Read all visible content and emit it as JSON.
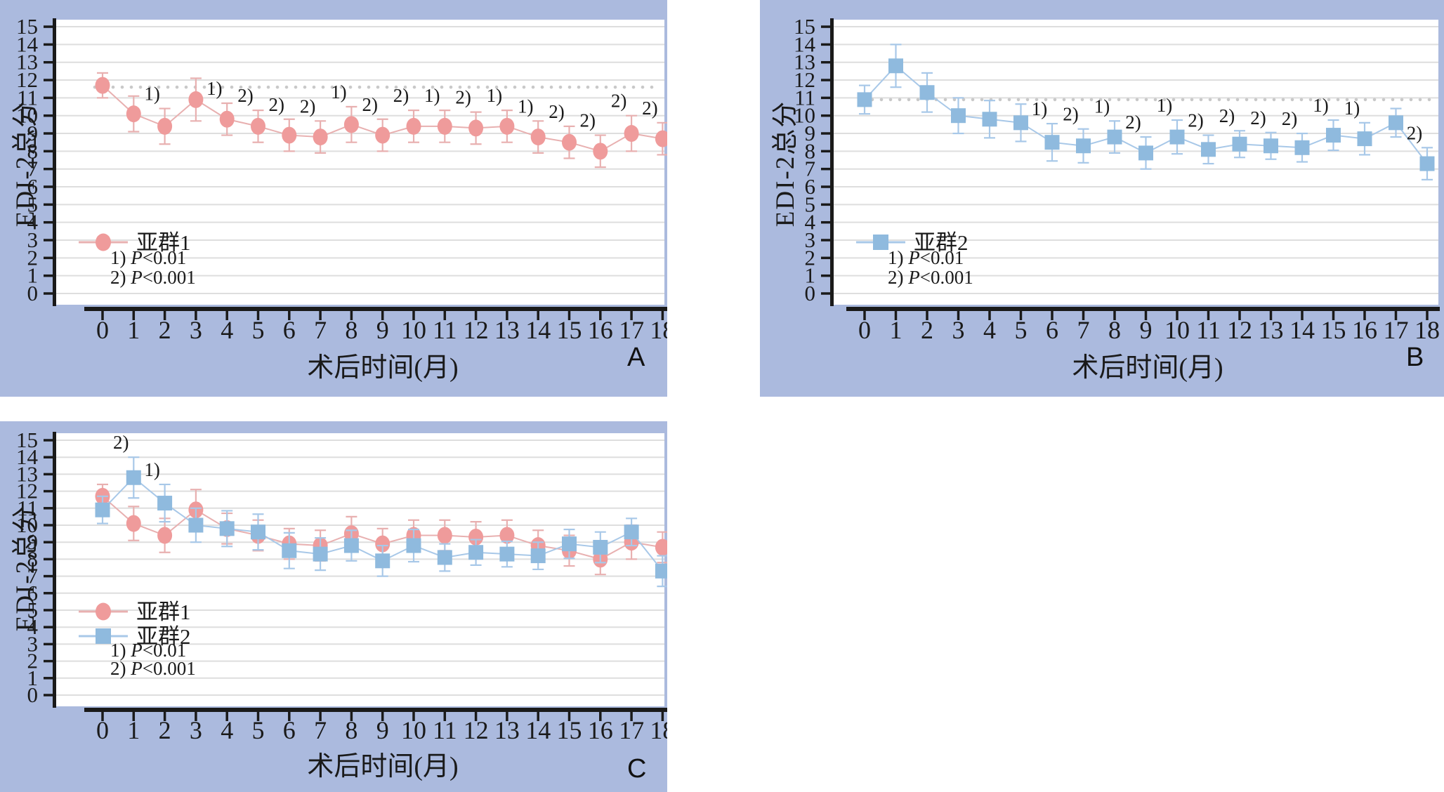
{
  "figure": {
    "panel_background": "#abbade",
    "plot_background": "#ffffff",
    "grid_color": "#dedede",
    "axis_color": "#1a1a1a",
    "reference_dot_color": "#c9c9c9"
  },
  "chart_data": [
    {
      "type": "line",
      "panel_label": "A",
      "xlabel": "术后时间(月)",
      "ylabel": "EDI-2总分",
      "x": [
        0,
        1,
        2,
        3,
        4,
        5,
        6,
        7,
        8,
        9,
        10,
        11,
        12,
        13,
        14,
        15,
        16,
        17,
        18
      ],
      "xlim": [
        0,
        18
      ],
      "ylim": [
        0,
        15
      ],
      "grid": true,
      "legend_position": "inside-lower-left",
      "reference_line_y": 11.6,
      "legend_notes": [
        "1) P<0.01",
        "2) P<0.001"
      ],
      "series": [
        {
          "name": "亚群1",
          "marker": "circle",
          "color": "#ef9b9b",
          "line_color": "#e8b0b0",
          "values": [
            11.7,
            10.1,
            9.4,
            10.9,
            9.8,
            9.4,
            8.9,
            8.8,
            9.5,
            8.9,
            9.4,
            9.4,
            9.3,
            9.4,
            8.8,
            8.5,
            8.0,
            9.0,
            8.7
          ],
          "errors": [
            0.7,
            1.0,
            1.0,
            1.2,
            0.9,
            0.9,
            0.9,
            0.9,
            1.0,
            0.9,
            0.9,
            0.9,
            0.9,
            0.9,
            0.9,
            0.9,
            0.9,
            1.0,
            0.9
          ],
          "annotations": {
            "2": "1)",
            "4": "1)",
            "5": "2)",
            "6": "2)",
            "7": "2)",
            "8": "1)",
            "9": "2)",
            "10": "2)",
            "11": "1)",
            "12": "2)",
            "13": "1)",
            "14": "1)",
            "15": "2)",
            "16": "2)",
            "17": "2)",
            "18": "2)"
          }
        }
      ]
    },
    {
      "type": "line",
      "panel_label": "B",
      "xlabel": "术后时间(月)",
      "ylabel": "EDI-2总分",
      "x": [
        0,
        1,
        2,
        3,
        4,
        5,
        6,
        7,
        8,
        9,
        10,
        11,
        12,
        13,
        14,
        15,
        16,
        17,
        18
      ],
      "xlim": [
        0,
        18
      ],
      "ylim": [
        0,
        15
      ],
      "grid": true,
      "legend_position": "inside-lower-left",
      "reference_line_y": 10.9,
      "legend_notes": [
        "1) P<0.01",
        "2) P<0.001"
      ],
      "series": [
        {
          "name": "亚群2",
          "marker": "square",
          "color": "#8fbade",
          "line_color": "#a8c8e8",
          "values": [
            10.9,
            12.8,
            11.3,
            10.0,
            9.8,
            9.6,
            8.5,
            8.3,
            8.8,
            7.9,
            8.8,
            8.1,
            8.4,
            8.3,
            8.2,
            8.9,
            8.7,
            9.6,
            7.3
          ],
          "errors": [
            0.8,
            1.2,
            1.1,
            1.0,
            1.05,
            1.05,
            1.05,
            0.95,
            0.9,
            0.9,
            0.95,
            0.8,
            0.75,
            0.75,
            0.8,
            0.85,
            0.9,
            0.8,
            0.9
          ],
          "annotations": {
            "6": "1)",
            "7": "2)",
            "8": "1)",
            "9": "2)",
            "10": "1)",
            "11": "2)",
            "12": "2)",
            "13": "2)",
            "14": "2)",
            "15": "1)",
            "16": "1)",
            "18": "2)"
          }
        }
      ]
    },
    {
      "type": "line",
      "panel_label": "C",
      "xlabel": "术后时间(月)",
      "ylabel": "EDI-2总分",
      "x": [
        0,
        1,
        2,
        3,
        4,
        5,
        6,
        7,
        8,
        9,
        10,
        11,
        12,
        13,
        14,
        15,
        16,
        17,
        18
      ],
      "xlim": [
        0,
        18
      ],
      "ylim": [
        0,
        15
      ],
      "grid": true,
      "legend_position": "inside-lower-left",
      "reference_line_y": null,
      "legend_notes": [
        "1) P<0.01",
        "2) P<0.001"
      ],
      "series": [
        {
          "name": "亚群1",
          "marker": "circle",
          "color": "#ef9b9b",
          "line_color": "#e8b0b0",
          "values": [
            11.7,
            10.1,
            9.4,
            10.9,
            9.8,
            9.4,
            8.9,
            8.8,
            9.5,
            8.9,
            9.4,
            9.4,
            9.3,
            9.4,
            8.8,
            8.5,
            8.0,
            9.0,
            8.7
          ],
          "errors": [
            0.7,
            1.0,
            1.0,
            1.2,
            0.9,
            0.9,
            0.9,
            0.9,
            1.0,
            0.9,
            0.9,
            0.9,
            0.9,
            0.9,
            0.9,
            0.9,
            0.9,
            1.0,
            0.9
          ],
          "annotations": {}
        },
        {
          "name": "亚群2",
          "marker": "square",
          "color": "#8fbade",
          "line_color": "#a8c8e8",
          "values": [
            10.9,
            12.8,
            11.3,
            10.0,
            9.8,
            9.6,
            8.5,
            8.3,
            8.8,
            7.9,
            8.8,
            8.1,
            8.4,
            8.3,
            8.2,
            8.9,
            8.7,
            9.6,
            7.3
          ],
          "errors": [
            0.8,
            1.2,
            1.1,
            1.0,
            1.05,
            1.05,
            1.05,
            0.95,
            0.9,
            0.9,
            0.95,
            0.8,
            0.75,
            0.75,
            0.8,
            0.85,
            0.9,
            0.8,
            0.9
          ],
          "annotations": {
            "1": "2)",
            "2": "1)"
          }
        }
      ]
    }
  ]
}
